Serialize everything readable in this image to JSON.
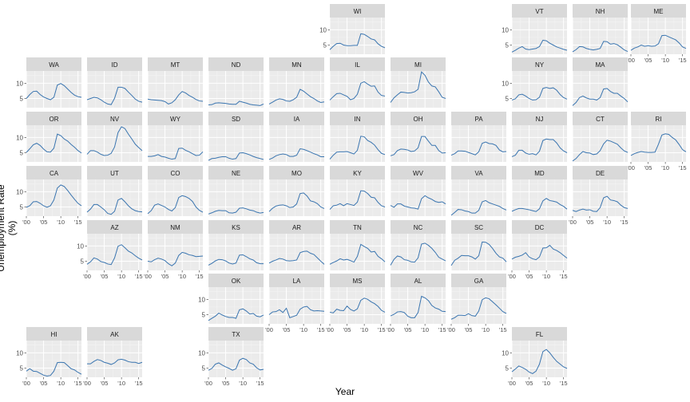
{
  "chart_data": {
    "type": "line",
    "layout": "state-grid-small-multiples",
    "xlabel": "Year",
    "ylabel": "Unemployment Rate (%)",
    "xlim": [
      2000,
      2016
    ],
    "ylim": [
      2,
      14
    ],
    "x_ticks": [
      2000,
      2005,
      2010,
      2015
    ],
    "x_tick_labels": [
      "'00",
      "'05",
      "'10",
      "'15"
    ],
    "y_ticks": [
      5,
      10
    ],
    "y_tick_labels": [
      "5",
      "10"
    ],
    "line_color": "#3a75b0",
    "panel_background": "#ebebeb",
    "strip_background": "#d9d9d9",
    "years": [
      2000,
      2001,
      2002,
      2003,
      2004,
      2005,
      2006,
      2007,
      2008,
      2009,
      2010,
      2011,
      2012,
      2013,
      2014,
      2015,
      2016
    ],
    "states": [
      {
        "abbr": "WI",
        "row": 0,
        "col": 5,
        "values": [
          3.5,
          4.6,
          5.5,
          5.6,
          5.0,
          4.8,
          4.8,
          4.9,
          4.9,
          8.7,
          8.5,
          7.8,
          7.0,
          6.7,
          5.4,
          4.6,
          4.1
        ]
      },
      {
        "abbr": "VT",
        "row": 0,
        "col": 8,
        "values": [
          2.7,
          3.3,
          4.0,
          4.5,
          3.7,
          3.5,
          3.7,
          3.9,
          4.5,
          6.6,
          6.4,
          5.6,
          5.0,
          4.4,
          4.0,
          3.6,
          3.3
        ]
      },
      {
        "abbr": "NH",
        "row": 0,
        "col": 9,
        "values": [
          2.8,
          3.5,
          4.5,
          4.4,
          3.9,
          3.6,
          3.4,
          3.6,
          3.9,
          6.2,
          6.1,
          5.3,
          5.5,
          5.1,
          4.3,
          3.4,
          2.9
        ]
      },
      {
        "abbr": "ME",
        "row": 0,
        "col": 10,
        "values": [
          3.3,
          4.0,
          4.4,
          5.0,
          4.6,
          4.8,
          4.6,
          4.7,
          5.4,
          8.1,
          8.2,
          7.7,
          7.2,
          6.7,
          5.7,
          4.4,
          3.9
        ]
      },
      {
        "abbr": "WA",
        "row": 1,
        "col": 0,
        "values": [
          5.0,
          6.3,
          7.3,
          7.4,
          6.3,
          5.5,
          5.0,
          4.6,
          5.4,
          9.4,
          9.9,
          9.2,
          8.1,
          7.0,
          6.1,
          5.6,
          5.4
        ]
      },
      {
        "abbr": "ID",
        "row": 1,
        "col": 1,
        "values": [
          4.6,
          5.0,
          5.4,
          5.2,
          4.6,
          3.8,
          3.2,
          3.0,
          5.1,
          8.7,
          8.7,
          8.3,
          7.1,
          6.0,
          4.8,
          4.1,
          3.8
        ]
      },
      {
        "abbr": "MT",
        "row": 1,
        "col": 2,
        "values": [
          4.8,
          4.6,
          4.5,
          4.4,
          4.3,
          4.0,
          3.2,
          3.6,
          4.6,
          6.2,
          7.3,
          6.8,
          6.0,
          5.4,
          4.7,
          4.2,
          4.1
        ]
      },
      {
        "abbr": "ND",
        "row": 1,
        "col": 3,
        "values": [
          2.9,
          3.0,
          3.5,
          3.6,
          3.5,
          3.4,
          3.2,
          3.1,
          3.1,
          4.1,
          3.8,
          3.5,
          3.1,
          2.9,
          2.8,
          2.7,
          3.2
        ]
      },
      {
        "abbr": "MN",
        "row": 1,
        "col": 4,
        "values": [
          3.2,
          3.8,
          4.5,
          4.9,
          4.7,
          4.2,
          4.1,
          4.6,
          5.4,
          8.0,
          7.4,
          6.5,
          5.6,
          5.0,
          4.2,
          3.7,
          3.9
        ]
      },
      {
        "abbr": "IL",
        "row": 1,
        "col": 5,
        "values": [
          4.5,
          5.6,
          6.6,
          6.7,
          6.2,
          5.7,
          4.6,
          5.0,
          6.4,
          10.0,
          10.5,
          9.7,
          9.0,
          9.1,
          7.1,
          6.0,
          5.8
        ]
      },
      {
        "abbr": "MI",
        "row": 1,
        "col": 6,
        "values": [
          3.7,
          5.2,
          6.2,
          7.1,
          7.0,
          6.8,
          6.9,
          7.2,
          8.0,
          13.7,
          12.6,
          10.4,
          9.1,
          8.8,
          7.2,
          5.4,
          5.0
        ]
      },
      {
        "abbr": "NY",
        "row": 1,
        "col": 8,
        "values": [
          4.5,
          4.9,
          6.2,
          6.4,
          5.8,
          5.0,
          4.5,
          4.6,
          5.4,
          8.3,
          8.6,
          8.3,
          8.5,
          7.7,
          6.3,
          5.3,
          4.8
        ]
      },
      {
        "abbr": "MA",
        "row": 1,
        "col": 9,
        "values": [
          2.7,
          3.7,
          5.3,
          5.8,
          5.2,
          4.8,
          4.8,
          4.5,
          5.3,
          8.1,
          8.3,
          7.3,
          6.7,
          6.7,
          5.8,
          5.0,
          3.9
        ]
      },
      {
        "abbr": "OR",
        "row": 2,
        "col": 0,
        "values": [
          5.1,
          6.3,
          7.6,
          8.1,
          7.4,
          6.2,
          5.3,
          5.2,
          6.5,
          11.1,
          10.6,
          9.5,
          8.8,
          7.7,
          6.8,
          5.7,
          4.9
        ]
      },
      {
        "abbr": "NV",
        "row": 2,
        "col": 1,
        "values": [
          4.5,
          5.7,
          5.7,
          5.2,
          4.5,
          4.1,
          4.2,
          4.8,
          6.9,
          11.6,
          13.5,
          12.9,
          11.1,
          9.5,
          7.8,
          6.7,
          5.7
        ]
      },
      {
        "abbr": "WY",
        "row": 2,
        "col": 2,
        "values": [
          3.8,
          3.8,
          4.0,
          4.4,
          3.8,
          3.6,
          3.2,
          2.9,
          3.1,
          6.4,
          6.5,
          5.8,
          5.3,
          4.7,
          4.1,
          4.2,
          5.3
        ]
      },
      {
        "abbr": "SD",
        "row": 2,
        "col": 3,
        "values": [
          2.5,
          3.1,
          3.2,
          3.5,
          3.7,
          3.7,
          3.2,
          2.9,
          3.1,
          4.9,
          5.0,
          4.7,
          4.3,
          3.8,
          3.4,
          3.1,
          2.8
        ]
      },
      {
        "abbr": "IA",
        "row": 2,
        "col": 4,
        "values": [
          2.8,
          3.3,
          4.0,
          4.4,
          4.6,
          4.4,
          3.8,
          3.8,
          4.2,
          6.3,
          6.1,
          5.7,
          5.2,
          4.7,
          4.3,
          3.7,
          3.7
        ]
      },
      {
        "abbr": "IN",
        "row": 2,
        "col": 5,
        "values": [
          2.9,
          4.2,
          5.2,
          5.3,
          5.3,
          5.4,
          5.0,
          4.6,
          5.8,
          10.4,
          10.2,
          9.0,
          8.4,
          7.5,
          6.0,
          4.8,
          4.4
        ]
      },
      {
        "abbr": "OH",
        "row": 2,
        "col": 6,
        "values": [
          4.0,
          4.4,
          5.7,
          6.2,
          6.1,
          5.9,
          5.4,
          5.6,
          6.6,
          10.3,
          10.3,
          8.8,
          7.4,
          7.4,
          5.7,
          4.9,
          5.0
        ]
      },
      {
        "abbr": "PA",
        "row": 2,
        "col": 7,
        "values": [
          4.2,
          4.7,
          5.6,
          5.6,
          5.5,
          5.1,
          4.7,
          4.3,
          5.3,
          8.1,
          8.5,
          8.0,
          7.9,
          7.4,
          5.9,
          5.3,
          5.4
        ]
      },
      {
        "abbr": "NJ",
        "row": 2,
        "col": 8,
        "values": [
          3.7,
          4.2,
          5.8,
          5.8,
          4.9,
          4.5,
          4.7,
          4.3,
          5.5,
          9.0,
          9.5,
          9.3,
          9.3,
          8.2,
          6.6,
          5.6,
          5.0
        ]
      },
      {
        "abbr": "CT",
        "row": 2,
        "col": 9,
        "values": [
          2.3,
          3.1,
          4.4,
          5.4,
          5.0,
          4.9,
          4.4,
          4.6,
          5.7,
          7.9,
          9.1,
          8.8,
          8.3,
          7.8,
          6.6,
          5.6,
          5.1
        ]
      },
      {
        "abbr": "RI",
        "row": 2,
        "col": 10,
        "values": [
          4.1,
          4.7,
          5.1,
          5.4,
          5.2,
          5.1,
          5.1,
          5.2,
          7.8,
          10.8,
          11.2,
          11.0,
          10.0,
          9.2,
          7.7,
          6.0,
          5.3
        ]
      },
      {
        "abbr": "CA",
        "row": 3,
        "col": 0,
        "values": [
          4.9,
          5.4,
          6.7,
          6.8,
          6.2,
          5.4,
          4.9,
          5.4,
          7.3,
          11.2,
          12.2,
          11.7,
          10.4,
          8.9,
          7.5,
          6.2,
          5.4
        ]
      },
      {
        "abbr": "UT",
        "row": 3,
        "col": 1,
        "values": [
          3.3,
          4.3,
          5.8,
          5.8,
          5.0,
          4.1,
          2.9,
          2.6,
          3.6,
          7.3,
          7.8,
          6.7,
          5.4,
          4.4,
          3.8,
          3.5,
          3.4
        ]
      },
      {
        "abbr": "CO",
        "row": 3,
        "col": 2,
        "values": [
          2.8,
          3.8,
          5.6,
          6.0,
          5.5,
          5.0,
          4.2,
          3.7,
          4.8,
          8.1,
          8.7,
          8.4,
          7.8,
          6.8,
          5.0,
          3.9,
          3.3
        ]
      },
      {
        "abbr": "NE",
        "row": 3,
        "col": 3,
        "values": [
          2.7,
          3.1,
          3.6,
          3.9,
          3.8,
          3.8,
          3.1,
          3.0,
          3.3,
          4.6,
          4.7,
          4.4,
          4.0,
          3.8,
          3.3,
          3.0,
          3.2
        ]
      },
      {
        "abbr": "MO",
        "row": 3,
        "col": 4,
        "values": [
          3.5,
          4.6,
          5.3,
          5.6,
          5.7,
          5.4,
          4.8,
          5.0,
          6.0,
          9.4,
          9.6,
          8.6,
          7.0,
          6.7,
          6.1,
          5.0,
          4.5
        ]
      },
      {
        "abbr": "KY",
        "row": 3,
        "col": 5,
        "values": [
          4.2,
          5.4,
          5.6,
          6.1,
          5.4,
          6.1,
          5.8,
          5.5,
          6.6,
          10.3,
          10.2,
          9.4,
          8.2,
          8.0,
          6.5,
          5.4,
          5.0
        ]
      },
      {
        "abbr": "WV",
        "row": 3,
        "col": 6,
        "values": [
          5.5,
          4.9,
          6.0,
          6.0,
          5.3,
          5.0,
          4.7,
          4.6,
          4.3,
          7.7,
          8.7,
          8.0,
          7.5,
          6.8,
          6.5,
          6.7,
          6.0
        ]
      },
      {
        "abbr": "VA",
        "row": 3,
        "col": 7,
        "values": [
          2.3,
          3.2,
          4.2,
          4.1,
          3.7,
          3.5,
          3.0,
          3.0,
          3.9,
          6.7,
          7.1,
          6.4,
          6.0,
          5.6,
          5.2,
          4.5,
          4.0
        ]
      },
      {
        "abbr": "MD",
        "row": 3,
        "col": 8,
        "values": [
          3.6,
          4.1,
          4.5,
          4.5,
          4.3,
          4.1,
          3.8,
          3.5,
          4.4,
          7.0,
          7.8,
          7.1,
          6.9,
          6.6,
          5.8,
          5.2,
          4.3
        ]
      },
      {
        "abbr": "DE",
        "row": 3,
        "col": 9,
        "values": [
          3.9,
          3.5,
          4.0,
          4.3,
          4.0,
          4.1,
          3.6,
          3.5,
          4.8,
          8.0,
          8.5,
          7.3,
          7.1,
          6.7,
          5.6,
          4.8,
          4.5
        ]
      },
      {
        "abbr": "AZ",
        "row": 4,
        "col": 1,
        "values": [
          4.0,
          4.8,
          6.1,
          5.7,
          4.9,
          4.6,
          4.1,
          3.9,
          6.1,
          9.9,
          10.4,
          9.4,
          8.3,
          7.7,
          6.8,
          6.0,
          5.4
        ]
      },
      {
        "abbr": "NM",
        "row": 4,
        "col": 2,
        "values": [
          5.0,
          4.8,
          5.5,
          6.0,
          5.7,
          5.2,
          4.2,
          3.5,
          4.4,
          6.9,
          7.9,
          7.6,
          7.1,
          6.9,
          6.5,
          6.6,
          6.7
        ]
      },
      {
        "abbr": "KS",
        "row": 4,
        "col": 3,
        "values": [
          3.7,
          4.3,
          5.1,
          5.6,
          5.5,
          5.1,
          4.4,
          4.1,
          4.4,
          7.0,
          7.1,
          6.5,
          5.8,
          5.4,
          4.5,
          4.2,
          4.2
        ]
      },
      {
        "abbr": "AR",
        "row": 4,
        "col": 4,
        "values": [
          4.4,
          5.0,
          5.4,
          5.9,
          5.7,
          5.2,
          5.1,
          5.2,
          5.4,
          7.8,
          8.2,
          8.3,
          7.6,
          7.2,
          6.1,
          5.0,
          4.0
        ]
      },
      {
        "abbr": "TN",
        "row": 4,
        "col": 5,
        "values": [
          4.0,
          4.6,
          5.1,
          5.8,
          5.4,
          5.6,
          5.2,
          4.7,
          6.6,
          10.5,
          9.8,
          9.2,
          8.0,
          8.2,
          6.6,
          5.8,
          4.8
        ]
      },
      {
        "abbr": "NC",
        "row": 4,
        "col": 6,
        "values": [
          3.7,
          5.6,
          6.7,
          6.4,
          5.5,
          5.3,
          4.8,
          4.7,
          6.1,
          10.6,
          10.9,
          10.2,
          9.2,
          7.9,
          6.3,
          5.7,
          5.1
        ]
      },
      {
        "abbr": "SC",
        "row": 4,
        "col": 7,
        "values": [
          3.6,
          5.3,
          6.0,
          6.9,
          6.8,
          6.8,
          6.4,
          5.7,
          6.8,
          11.3,
          11.2,
          10.5,
          9.2,
          7.6,
          6.4,
          6.0,
          4.8
        ]
      },
      {
        "abbr": "DC",
        "row": 4,
        "col": 8,
        "values": [
          5.7,
          6.3,
          6.6,
          7.0,
          7.8,
          6.4,
          5.8,
          5.5,
          6.4,
          9.3,
          9.4,
          10.2,
          9.0,
          8.5,
          7.8,
          6.9,
          6.0
        ]
      },
      {
        "abbr": "OK",
        "row": 5,
        "col": 3,
        "values": [
          3.1,
          3.8,
          4.5,
          5.5,
          4.9,
          4.4,
          4.1,
          4.1,
          3.8,
          6.6,
          6.9,
          6.2,
          5.2,
          5.4,
          4.5,
          4.3,
          4.9
        ]
      },
      {
        "abbr": "LA",
        "row": 5,
        "col": 4,
        "values": [
          5.0,
          5.9,
          6.0,
          6.6,
          5.7,
          7.1,
          4.0,
          4.4,
          4.8,
          6.8,
          7.5,
          7.7,
          6.6,
          6.2,
          6.3,
          6.2,
          6.1
        ]
      },
      {
        "abbr": "MS",
        "row": 5,
        "col": 5,
        "values": [
          5.8,
          5.6,
          6.8,
          6.4,
          6.3,
          7.8,
          6.7,
          6.2,
          6.9,
          9.7,
          10.4,
          10.0,
          9.2,
          8.6,
          7.7,
          6.4,
          5.8
        ]
      },
      {
        "abbr": "AL",
        "row": 5,
        "col": 6,
        "values": [
          4.6,
          5.1,
          5.9,
          6.0,
          5.7,
          4.5,
          4.0,
          4.0,
          5.7,
          11.0,
          10.5,
          9.6,
          8.0,
          7.2,
          6.8,
          6.1,
          6.0
        ]
      },
      {
        "abbr": "GA",
        "row": 5,
        "col": 7,
        "values": [
          3.5,
          4.0,
          4.8,
          4.8,
          4.7,
          5.3,
          4.7,
          4.5,
          6.2,
          9.9,
          10.5,
          10.2,
          9.2,
          8.2,
          7.1,
          6.0,
          5.4
        ]
      },
      {
        "abbr": "HI",
        "row": 6,
        "col": 0,
        "values": [
          4.0,
          4.8,
          4.0,
          3.9,
          3.3,
          2.7,
          2.4,
          2.6,
          4.0,
          6.8,
          6.9,
          6.8,
          5.8,
          4.8,
          4.4,
          3.6,
          3.0
        ]
      },
      {
        "abbr": "AK",
        "row": 6,
        "col": 1,
        "values": [
          6.4,
          6.4,
          7.2,
          7.8,
          7.5,
          6.9,
          6.6,
          6.2,
          6.7,
          7.7,
          7.9,
          7.6,
          7.1,
          6.9,
          6.9,
          6.5,
          6.9
        ]
      },
      {
        "abbr": "TX",
        "row": 6,
        "col": 3,
        "values": [
          4.3,
          4.9,
          6.3,
          6.7,
          6.0,
          5.4,
          4.9,
          4.3,
          4.8,
          7.6,
          8.2,
          7.8,
          6.7,
          6.3,
          5.1,
          4.4,
          4.6
        ]
      },
      {
        "abbr": "FL",
        "row": 6,
        "col": 8,
        "values": [
          3.8,
          4.7,
          5.7,
          5.2,
          4.6,
          3.7,
          3.2,
          4.0,
          6.3,
          10.4,
          11.1,
          10.0,
          8.5,
          7.2,
          6.3,
          5.4,
          4.9
        ]
      }
    ]
  }
}
